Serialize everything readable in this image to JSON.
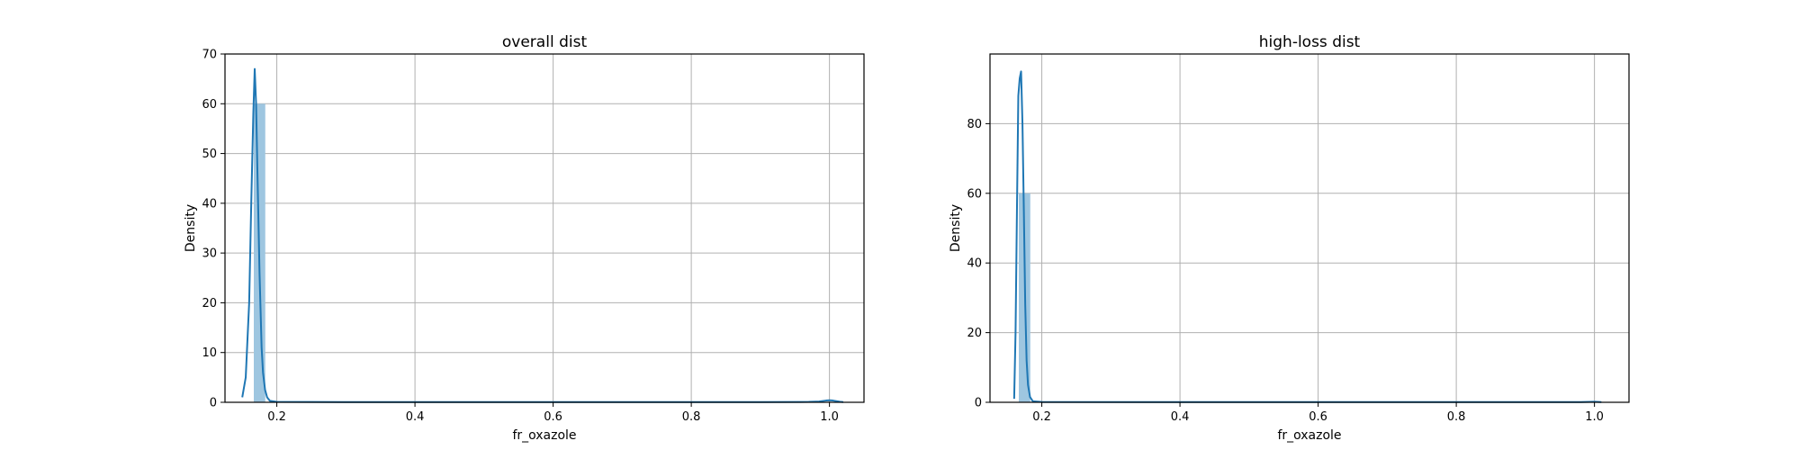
{
  "chart_data": [
    {
      "type": "histogram+kde",
      "title": "overall dist",
      "xlabel": "fr_oxazole",
      "ylabel": "Density",
      "xlim": [
        0.125,
        1.05
      ],
      "ylim": [
        0,
        70
      ],
      "xticks": [
        0.2,
        0.4,
        0.6,
        0.8,
        1.0
      ],
      "xtick_labels": [
        "0.2",
        "0.4",
        "0.6",
        "0.8",
        "1.0"
      ],
      "yticks": [
        0,
        10,
        20,
        30,
        40,
        50,
        60,
        70
      ],
      "ytick_labels": [
        "0",
        "10",
        "20",
        "30",
        "40",
        "50",
        "60",
        "70"
      ],
      "grid": true,
      "histogram": {
        "color": "#9ec6e0",
        "bins": [
          {
            "x0": 0.1667,
            "x1": 0.1833,
            "density": 60
          }
        ]
      },
      "kde": {
        "color": "#1f77b4",
        "x": [
          0.15,
          0.155,
          0.16,
          0.163,
          0.166,
          0.168,
          0.17,
          0.172,
          0.175,
          0.178,
          0.18,
          0.183,
          0.186,
          0.19,
          0.2,
          0.3,
          0.5,
          0.7,
          0.9,
          0.97,
          0.985,
          0.995,
          1.0,
          1.005,
          1.015,
          1.02
        ],
        "y": [
          1,
          5,
          20,
          40,
          58,
          67,
          60,
          46,
          26,
          11,
          6,
          2.5,
          1,
          0.3,
          0.1,
          0.05,
          0.05,
          0.05,
          0.05,
          0.08,
          0.15,
          0.35,
          0.4,
          0.35,
          0.12,
          0.05
        ]
      }
    },
    {
      "type": "histogram+kde",
      "title": "high-loss dist",
      "xlabel": "fr_oxazole",
      "ylabel": "Density",
      "xlim": [
        0.125,
        1.05
      ],
      "ylim": [
        0,
        100
      ],
      "xticks": [
        0.2,
        0.4,
        0.6,
        0.8,
        1.0
      ],
      "xtick_labels": [
        "0.2",
        "0.4",
        "0.6",
        "0.8",
        "1.0"
      ],
      "yticks": [
        0,
        20,
        40,
        60,
        80
      ],
      "ytick_labels": [
        "0",
        "20",
        "40",
        "60",
        "80"
      ],
      "grid": true,
      "histogram": {
        "color": "#9ec6e0",
        "bins": [
          {
            "x0": 0.1667,
            "x1": 0.1833,
            "density": 60
          }
        ]
      },
      "kde": {
        "color": "#1f77b4",
        "x": [
          0.16,
          0.162,
          0.164,
          0.166,
          0.168,
          0.17,
          0.172,
          0.174,
          0.176,
          0.178,
          0.18,
          0.183,
          0.187,
          0.2,
          0.4,
          0.6,
          0.8,
          0.98,
          1.0,
          1.01
        ],
        "y": [
          1,
          20,
          55,
          88,
          93,
          95,
          80,
          55,
          28,
          12,
          5,
          1.5,
          0.3,
          0.1,
          0.05,
          0.05,
          0.05,
          0.08,
          0.15,
          0.05
        ]
      }
    }
  ]
}
